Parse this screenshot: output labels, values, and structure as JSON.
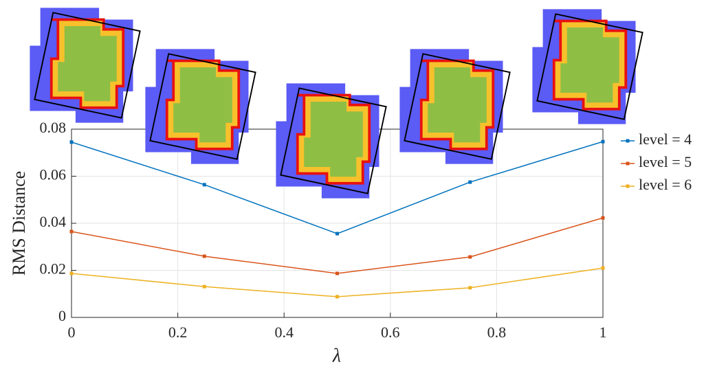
{
  "chart_data": {
    "type": "line",
    "x_label": "λ",
    "y_label": "RMS Distance",
    "x": [
      0,
      0.25,
      0.5,
      0.75,
      1
    ],
    "series": [
      {
        "name": "level = 4",
        "color": "#0072bd",
        "values": [
          0.0745,
          0.0564,
          0.0356,
          0.0575,
          0.0747
        ]
      },
      {
        "name": "level = 5",
        "color": "#d95319",
        "values": [
          0.0365,
          0.026,
          0.0187,
          0.0257,
          0.0423
        ]
      },
      {
        "name": "level = 6",
        "color": "#edb120",
        "values": [
          0.0187,
          0.0131,
          0.0088,
          0.0126,
          0.021
        ]
      }
    ],
    "xlim": [
      0,
      1
    ],
    "ylim": [
      0,
      0.08
    ],
    "xticks": [
      0,
      0.2,
      0.4,
      0.6,
      0.8,
      1
    ],
    "yticks": [
      0,
      0.02,
      0.04,
      0.06,
      0.08
    ],
    "grid": true,
    "legend": "right"
  }
}
